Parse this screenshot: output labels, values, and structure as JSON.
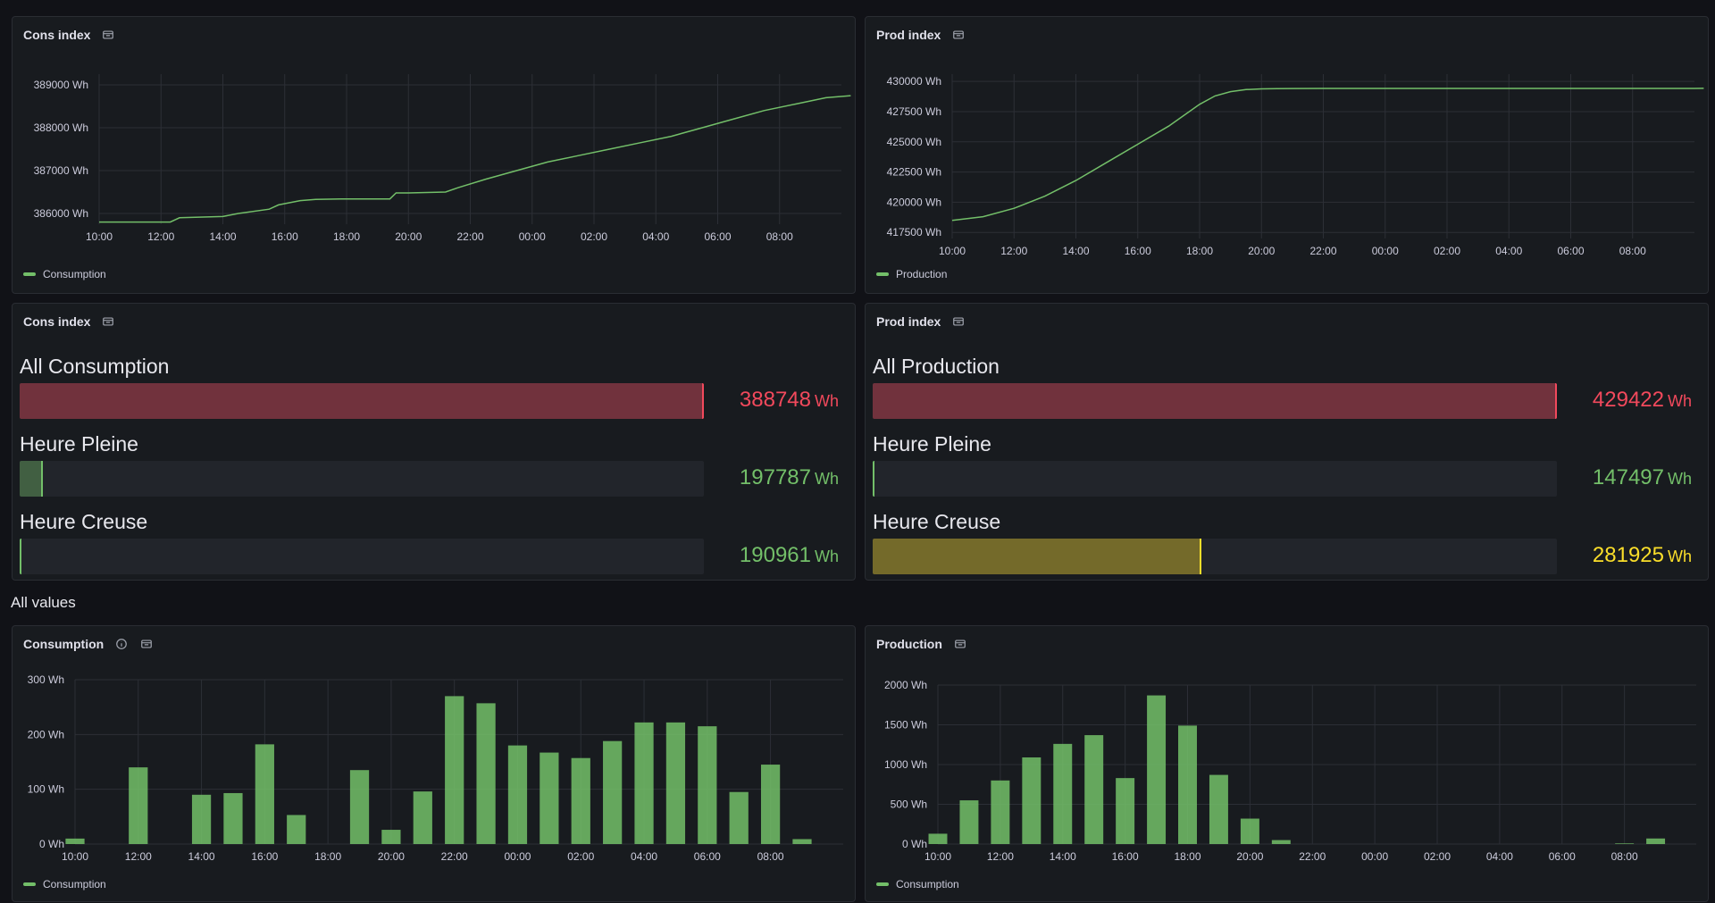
{
  "panels": {
    "cons_line": {
      "title": "Cons index",
      "legend": "Consumption"
    },
    "prod_line": {
      "title": "Prod index",
      "legend": "Production"
    },
    "cons_gauge": {
      "title": "Cons index"
    },
    "prod_gauge": {
      "title": "Prod index"
    },
    "cons_bar": {
      "title": "Consumption",
      "legend": "Consumption"
    },
    "prod_bar": {
      "title": "Production",
      "legend": "Consumption"
    }
  },
  "section": {
    "title": "All values"
  },
  "colors": {
    "green": "#73bf69",
    "red": "#f2495c",
    "yellow": "#fade2a"
  },
  "cons_rows": [
    {
      "label": "All Consumption",
      "value": "388748",
      "unit": "Wh",
      "fraction": 1.0,
      "color": "red"
    },
    {
      "label": "Heure Pleine",
      "value": "197787",
      "unit": "Wh",
      "fraction": 0.034,
      "color": "green"
    },
    {
      "label": "Heure Creuse",
      "value": "190961",
      "unit": "Wh",
      "fraction": 0.0,
      "color": "green"
    }
  ],
  "prod_rows": [
    {
      "label": "All Production",
      "value": "429422",
      "unit": "Wh",
      "fraction": 1.0,
      "color": "red"
    },
    {
      "label": "Heure Pleine",
      "value": "147497",
      "unit": "Wh",
      "fraction": 0.0,
      "color": "green"
    },
    {
      "label": "Heure Creuse",
      "value": "281925",
      "unit": "Wh",
      "fraction": 0.48,
      "color": "yellow"
    }
  ],
  "chart_data": [
    {
      "id": "cons_line",
      "type": "line",
      "title": "Cons index",
      "xticks": [
        "10:00",
        "12:00",
        "14:00",
        "16:00",
        "18:00",
        "20:00",
        "22:00",
        "00:00",
        "02:00",
        "04:00",
        "06:00",
        "08:00"
      ],
      "x_range": [
        0,
        24
      ],
      "ylim": [
        385750,
        389250
      ],
      "yticks": [
        386000,
        387000,
        388000,
        389000
      ],
      "ytick_labels": [
        "386000 Wh",
        "387000 Wh",
        "388000 Wh",
        "389000 Wh"
      ],
      "series": [
        {
          "name": "Consumption",
          "x": [
            0,
            2.3,
            2.6,
            4.0,
            4.5,
            5.5,
            5.8,
            6.5,
            7.0,
            8.0,
            9.4,
            9.6,
            10.0,
            11.2,
            11.6,
            12.5,
            13.5,
            14.5,
            15.5,
            16.5,
            17.5,
            18.5,
            19.5,
            20.5,
            21.5,
            22.5,
            23.5,
            24.3
          ],
          "y": [
            385800,
            385800,
            385900,
            385930,
            386000,
            386100,
            386200,
            386300,
            386330,
            386340,
            386340,
            386480,
            386480,
            386500,
            386600,
            386800,
            387000,
            387200,
            387350,
            387500,
            387650,
            387800,
            388000,
            388200,
            388400,
            388550,
            388700,
            388748
          ]
        }
      ]
    },
    {
      "id": "prod_line",
      "type": "line",
      "title": "Prod index",
      "xticks": [
        "10:00",
        "12:00",
        "14:00",
        "16:00",
        "18:00",
        "20:00",
        "22:00",
        "00:00",
        "02:00",
        "04:00",
        "06:00",
        "08:00"
      ],
      "x_range": [
        0,
        24
      ],
      "ylim": [
        417000,
        430600
      ],
      "yticks": [
        417500,
        420000,
        422500,
        425000,
        427500,
        430000
      ],
      "ytick_labels": [
        "417500 Wh",
        "420000 Wh",
        "422500 Wh",
        "425000 Wh",
        "427500 Wh",
        "430000 Wh"
      ],
      "series": [
        {
          "name": "Production",
          "x": [
            0,
            1.0,
            2.0,
            3.0,
            4.0,
            5.0,
            6.0,
            7.0,
            7.5,
            8.0,
            8.5,
            9.0,
            9.5,
            10.0,
            10.5,
            11.0,
            12.0,
            24.0,
            24.3
          ],
          "y": [
            418500,
            418800,
            419500,
            420500,
            421800,
            423300,
            424800,
            426300,
            427200,
            428100,
            428800,
            429150,
            429320,
            429380,
            429400,
            429410,
            429415,
            429420,
            429422
          ]
        }
      ]
    },
    {
      "id": "cons_bar",
      "type": "bar",
      "title": "Consumption",
      "xticks": [
        "10:00",
        "12:00",
        "14:00",
        "16:00",
        "18:00",
        "20:00",
        "22:00",
        "00:00",
        "02:00",
        "04:00",
        "06:00",
        "08:00"
      ],
      "x_range": [
        0,
        24.3
      ],
      "ylim": [
        0,
        300
      ],
      "yticks": [
        0,
        100,
        200,
        300
      ],
      "ytick_labels": [
        "0 Wh",
        "100 Wh",
        "200 Wh",
        "300 Wh"
      ],
      "series": [
        {
          "name": "Consumption",
          "x": [
            0,
            1,
            2,
            3,
            4,
            5,
            6,
            7,
            8,
            9,
            10,
            11,
            12,
            13,
            14,
            15,
            16,
            17,
            18,
            19,
            20,
            21,
            22,
            23,
            24
          ],
          "values": [
            10,
            0,
            140,
            0,
            90,
            93,
            182,
            53,
            0,
            135,
            26,
            96,
            270,
            257,
            180,
            167,
            157,
            188,
            222,
            222,
            215,
            95,
            145,
            9,
            0
          ]
        }
      ]
    },
    {
      "id": "prod_bar",
      "type": "bar",
      "title": "Production",
      "xticks": [
        "10:00",
        "12:00",
        "14:00",
        "16:00",
        "18:00",
        "20:00",
        "22:00",
        "00:00",
        "02:00",
        "04:00",
        "06:00",
        "08:00"
      ],
      "x_range": [
        0,
        24.3
      ],
      "ylim": [
        0,
        2000
      ],
      "yticks": [
        0,
        500,
        1000,
        1500,
        2000
      ],
      "ytick_labels": [
        "0 Wh",
        "500 Wh",
        "1000 Wh",
        "1500 Wh",
        "2000 Wh"
      ],
      "series": [
        {
          "name": "Consumption",
          "x": [
            0,
            1,
            2,
            3,
            4,
            5,
            6,
            7,
            8,
            9,
            10,
            11,
            12,
            13,
            14,
            15,
            16,
            17,
            18,
            19,
            20,
            21,
            22,
            23
          ],
          "values": [
            130,
            550,
            800,
            1090,
            1260,
            1370,
            830,
            1870,
            1490,
            870,
            320,
            50,
            0,
            0,
            0,
            0,
            0,
            0,
            0,
            0,
            0,
            0,
            8,
            70
          ]
        }
      ]
    }
  ]
}
